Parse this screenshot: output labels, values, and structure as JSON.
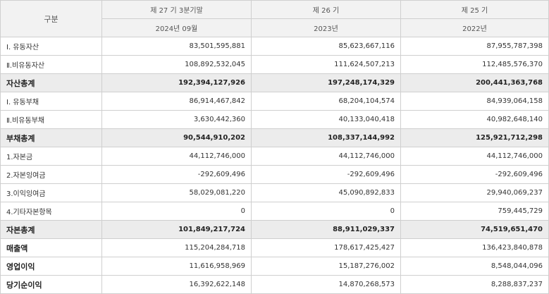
{
  "header": {
    "label": "구분",
    "periods": [
      {
        "title": "제 27 기 3분기말",
        "sub": "2024년 09월"
      },
      {
        "title": "제 26 기",
        "sub": "2023년"
      },
      {
        "title": "제 25 기",
        "sub": "2022년"
      }
    ]
  },
  "rows": [
    {
      "label": "Ⅰ. 유동자산",
      "v": [
        "83,501,595,881",
        "85,623,667,116",
        "87,955,787,398"
      ]
    },
    {
      "label": "Ⅱ.비유동자산",
      "v": [
        "108,892,532,045",
        "111,624,507,213",
        "112,485,576,370"
      ]
    },
    {
      "label": "자산총계",
      "v": [
        "192,394,127,926",
        "197,248,174,329",
        "200,441,363,768"
      ]
    },
    {
      "label": "Ⅰ. 유동부채",
      "v": [
        "86,914,467,842",
        "68,204,104,574",
        "84,939,064,158"
      ]
    },
    {
      "label": "Ⅱ.비유동부채",
      "v": [
        "3,630,442,360",
        "40,133,040,418",
        "40,982,648,140"
      ]
    },
    {
      "label": "부채총계",
      "v": [
        "90,544,910,202",
        "108,337,144,992",
        "125,921,712,298"
      ]
    },
    {
      "label": "1.자본금",
      "v": [
        "44,112,746,000",
        "44,112,746,000",
        "44,112,746,000"
      ]
    },
    {
      "label": "2.자본잉여금",
      "v": [
        "-292,609,496",
        "-292,609,496",
        "-292,609,496"
      ]
    },
    {
      "label": "3.이익잉여금",
      "v": [
        "58,029,081,220",
        "45,090,892,833",
        "29,940,069,237"
      ]
    },
    {
      "label": "4.기타자본항목",
      "v": [
        "0",
        "0",
        "759,445,729"
      ]
    },
    {
      "label": "자본총계",
      "v": [
        "101,849,217,724",
        "88,911,029,337",
        "74,519,651,470"
      ]
    },
    {
      "label": "매출액",
      "v": [
        "115,204,284,718",
        "178,617,425,427",
        "136,423,840,878"
      ]
    },
    {
      "label": "영업이익",
      "v": [
        "11,616,958,969",
        "15,187,276,002",
        "8,548,044,096"
      ]
    },
    {
      "label": "당기순이익",
      "v": [
        "16,392,622,148",
        "14,870,268,573",
        "8,288,837,237"
      ]
    }
  ]
}
